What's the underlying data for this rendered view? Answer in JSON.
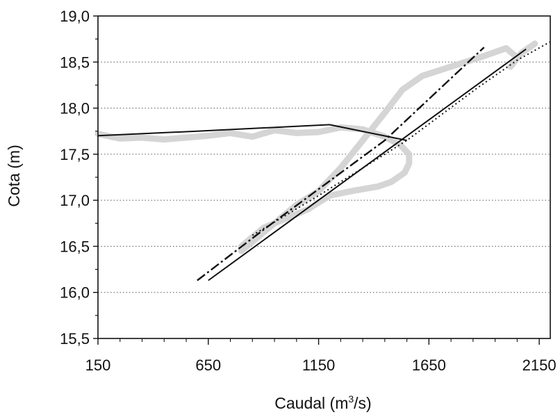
{
  "chart_data": {
    "type": "line",
    "title": "",
    "xlabel": "Caudal (m",
    "xlabel_sup": "3",
    "xlabel_tail": "/s)",
    "ylabel": "Cota (m)",
    "xlim": [
      150,
      2200
    ],
    "ylim": [
      15.5,
      19.0
    ],
    "x_ticks": [
      150,
      650,
      1150,
      1650,
      2150
    ],
    "x_tick_labels": [
      "150",
      "650",
      "1150",
      "1650",
      "2150"
    ],
    "y_ticks": [
      15.5,
      16.0,
      16.5,
      17.0,
      17.5,
      18.0,
      18.5,
      19.0
    ],
    "y_tick_labels": [
      "15,5",
      "16,0",
      "16,5",
      "17,0",
      "17,5",
      "18,0",
      "18,5",
      "19,0"
    ],
    "grid": "horizontal dotted",
    "legend": "none",
    "colors": {
      "line": "#111111",
      "scatter_band": "#d0d0d0",
      "grid": "#555555"
    },
    "series": [
      {
        "style": "gray-band",
        "x": [
          150,
          250,
          350,
          450,
          550,
          650,
          750,
          850,
          950,
          1050,
          1150,
          1250,
          1350,
          1450,
          1520,
          1560,
          1560,
          1540,
          1480,
          1420,
          1300,
          1200,
          1100,
          1000,
          900,
          850,
          800,
          800,
          850,
          950,
          1050,
          1150,
          1250,
          1350,
          1450,
          1530,
          1620,
          1750,
          1880,
          2000,
          2050,
          2020,
          2070,
          2130
        ],
        "y": [
          17.72,
          17.67,
          17.68,
          17.66,
          17.68,
          17.7,
          17.73,
          17.69,
          17.76,
          17.73,
          17.74,
          17.79,
          17.77,
          17.69,
          17.6,
          17.5,
          17.4,
          17.3,
          17.2,
          17.15,
          17.1,
          17.05,
          16.9,
          16.8,
          16.7,
          16.6,
          16.5,
          16.45,
          16.55,
          16.75,
          16.95,
          17.1,
          17.35,
          17.65,
          17.95,
          18.2,
          18.35,
          18.45,
          18.55,
          18.65,
          18.55,
          18.45,
          18.6,
          18.7
        ]
      },
      {
        "style": "solid",
        "x": [
          150,
          600,
          1200,
          1550
        ],
        "y": [
          17.7,
          17.75,
          17.82,
          17.65
        ]
      },
      {
        "style": "solid",
        "x": [
          650,
          2090
        ],
        "y": [
          16.13,
          18.64
        ]
      },
      {
        "style": "dash-dot",
        "x": [
          600,
          900,
          1450,
          1900
        ],
        "y": [
          16.13,
          16.68,
          17.65,
          18.66
        ]
      },
      {
        "style": "dotted",
        "x": [
          850,
          1150,
          1550,
          1870,
          2050,
          2200
        ],
        "y": [
          16.62,
          17.05,
          17.65,
          18.22,
          18.52,
          18.72
        ]
      }
    ]
  }
}
